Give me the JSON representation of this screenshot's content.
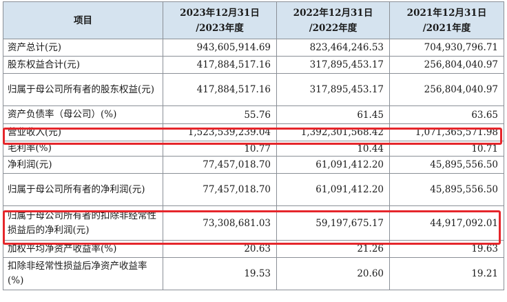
{
  "header": {
    "item": "项目",
    "col1": [
      "2023年12月31日",
      "/2023年度"
    ],
    "col2": [
      "2022年12月31日",
      "/2022年度"
    ],
    "col3": [
      "2021年12月31日",
      "/2021年度"
    ]
  },
  "rows": [
    {
      "label": "资产总计(元)",
      "v1": "943,605,914.69",
      "v2": "823,464,246.53",
      "v3": "704,930,796.71"
    },
    {
      "label": "股东权益合计(元)",
      "v1": "417,884,517.16",
      "v2": "317,895,453.17",
      "v3": "256,804,040.97"
    },
    {
      "label": "归属于母公司所有者的股东权益(元)",
      "v1": "417,884,517.16",
      "v2": "317,895,453.17",
      "v3": "256,804,040.97"
    },
    {
      "label": "资产负债率（母公司）(%)",
      "v1": "55.76",
      "v2": "61.45",
      "v3": "63.65"
    },
    {
      "label": "营业收入(元)",
      "v1": "1,523,539,239.04",
      "v2": "1,392,301,568.42",
      "v3": "1,071,365,571.98"
    },
    {
      "label": "毛利率(%)",
      "v1": "10.77",
      "v2": "10.44",
      "v3": "10.71"
    },
    {
      "label": "净利润(元)",
      "v1": "77,457,018.70",
      "v2": "61,091,412.20",
      "v3": "45,895,556.50"
    },
    {
      "label": "归属于母公司所有者的净利润(元)",
      "v1": "77,457,018.70",
      "v2": "61,091,412.20",
      "v3": "45,895,556.50"
    },
    {
      "label": "归属于母公司所有者的扣除非经常性损益后的净利润(元)",
      "v1": "73,308,681.03",
      "v2": "59,197,675.17",
      "v3": "44,917,092.01"
    },
    {
      "label": "加权平均净资产收益率(%)",
      "v1": "20.63",
      "v2": "21.26",
      "v3": "19.63"
    },
    {
      "label": "扣除非经常性损益后净资产收益率(%)",
      "v1": "19.53",
      "v2": "20.60",
      "v3": "19.21"
    }
  ],
  "highlight_color": "#e5262b",
  "header_bg": "#d5e3ef"
}
